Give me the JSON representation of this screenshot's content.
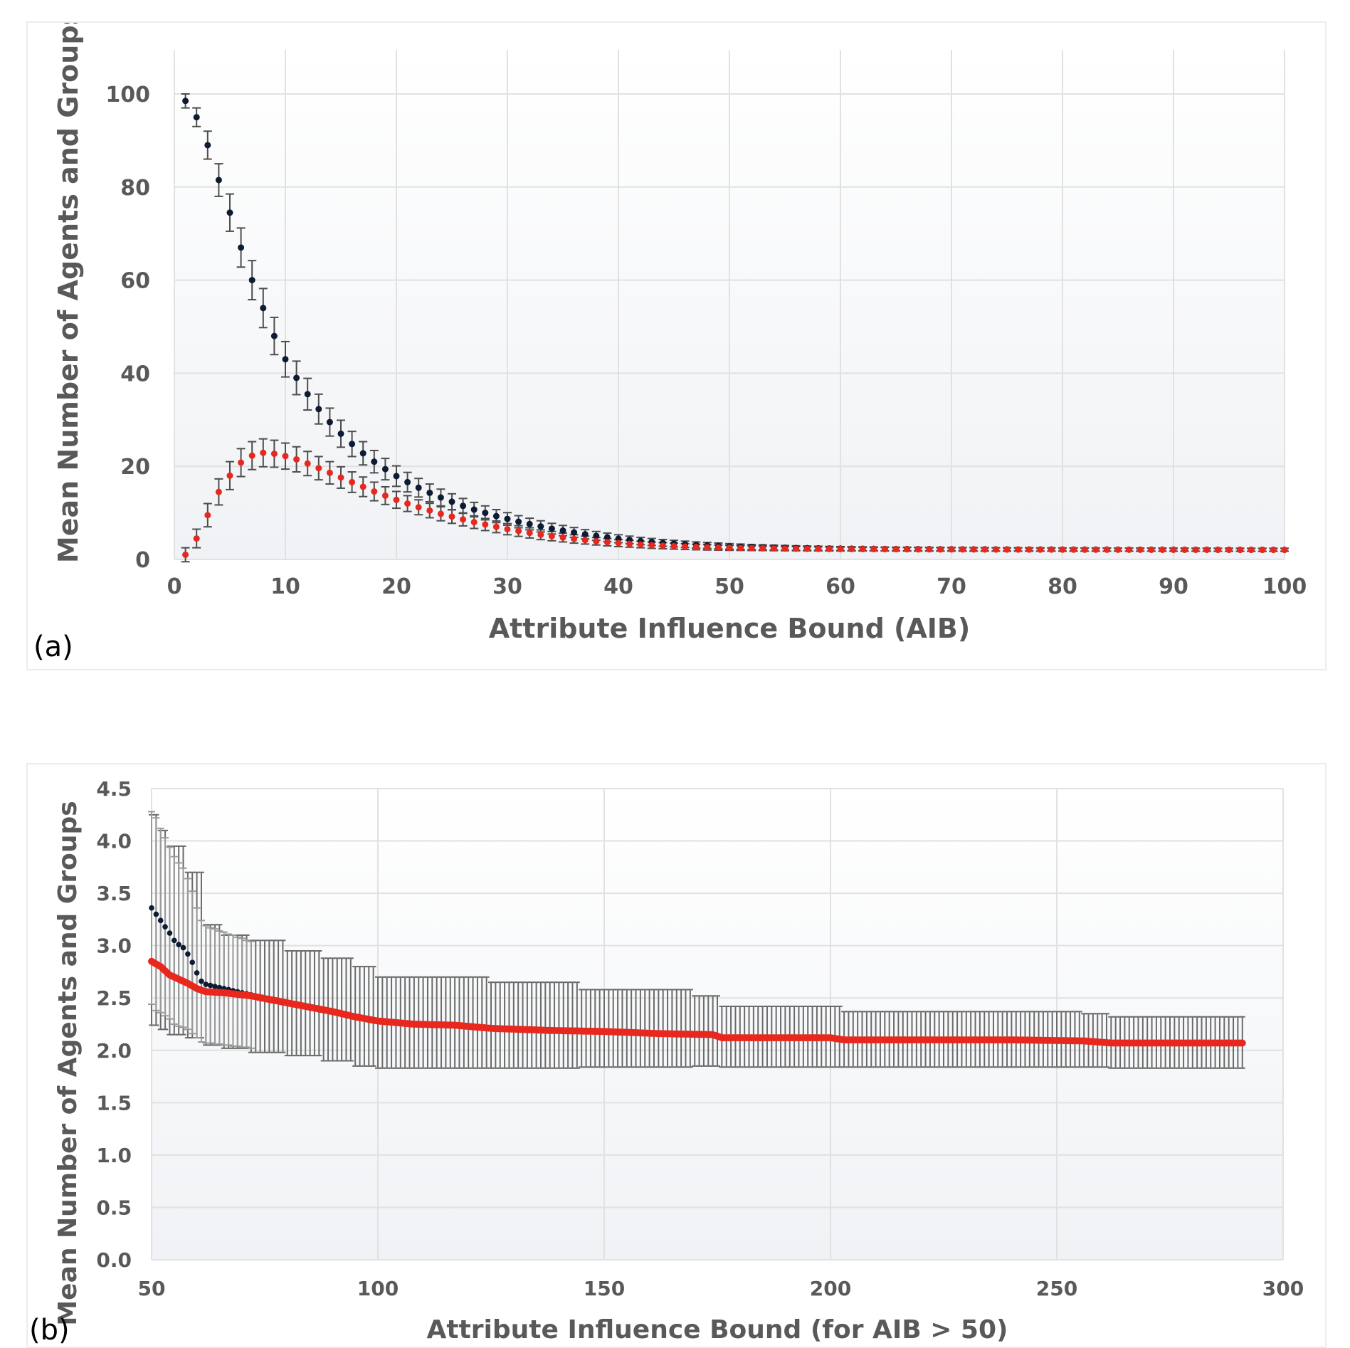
{
  "colors": {
    "agents": "#0d1b33",
    "groups": "#e8281e",
    "errorbar": "#4d4d4d",
    "grid": "#e1e1e1"
  },
  "chart_data": [
    {
      "id": "a",
      "panel_label": "(a)",
      "type": "scatter",
      "title": "",
      "xlabel": "Attribute Influence Bound (AIB)",
      "ylabel": "Mean Number of Agents and Groups",
      "xlim": [
        0,
        100
      ],
      "ylim": [
        0,
        110
      ],
      "xticks": [
        0,
        10,
        20,
        30,
        40,
        50,
        60,
        70,
        80,
        90,
        100
      ],
      "yticks": [
        0,
        20,
        40,
        60,
        80,
        100
      ],
      "grid": true,
      "legend": "none",
      "series": [
        {
          "name": "agents",
          "color": "#0d1b33",
          "x_start": 1,
          "x_step": 1,
          "values": [
            98.5,
            95,
            89,
            81.5,
            74.5,
            67,
            60,
            54,
            48,
            43,
            39,
            35.5,
            32.3,
            29.5,
            27,
            24.8,
            22.8,
            21,
            19.4,
            17.9,
            16.6,
            15.4,
            14.3,
            13.3,
            12.4,
            11.5,
            10.7,
            10,
            9.3,
            8.7,
            8.1,
            7.6,
            7.1,
            6.6,
            6.2,
            5.8,
            5.4,
            5.05,
            4.75,
            4.45,
            4.2,
            3.95,
            3.75,
            3.55,
            3.4,
            3.25,
            3.1,
            3,
            2.9,
            2.8,
            2.72,
            2.65,
            2.6,
            2.55,
            2.5,
            2.45,
            2.42,
            2.39,
            2.36,
            2.33,
            2.31,
            2.29,
            2.27,
            2.25,
            2.24,
            2.23,
            2.22,
            2.21,
            2.2,
            2.19,
            2.18,
            2.17,
            2.17,
            2.16,
            2.16,
            2.15,
            2.15,
            2.14,
            2.14,
            2.13,
            2.13,
            2.12,
            2.12,
            2.12,
            2.11,
            2.11,
            2.11,
            2.1,
            2.1,
            2.1,
            2.09,
            2.09,
            2.09,
            2.08,
            2.08,
            2.08,
            2.07,
            2.07,
            2.07,
            2.07
          ],
          "errors": [
            1.5,
            2,
            3,
            3.5,
            4,
            4.2,
            4.2,
            4.2,
            4,
            3.8,
            3.6,
            3.4,
            3.2,
            3,
            2.9,
            2.7,
            2.5,
            2.4,
            2.3,
            2.2,
            2.1,
            2,
            1.9,
            1.8,
            1.7,
            1.6,
            1.55,
            1.5,
            1.4,
            1.35,
            1.3,
            1.25,
            1.2,
            1.15,
            1.1,
            1.05,
            1,
            0.95,
            0.9,
            0.85,
            0.8,
            0.78,
            0.75,
            0.72,
            0.7,
            0.68,
            0.66,
            0.64,
            0.62,
            0.6,
            0.58,
            0.56,
            0.54,
            0.52,
            0.5,
            0.48,
            0.46,
            0.45,
            0.44,
            0.43,
            0.42,
            0.41,
            0.4,
            0.4,
            0.39,
            0.39,
            0.38,
            0.38,
            0.38,
            0.37,
            0.37,
            0.37,
            0.36,
            0.36,
            0.36,
            0.35,
            0.35,
            0.35,
            0.35,
            0.34,
            0.34,
            0.34,
            0.34,
            0.34,
            0.33,
            0.33,
            0.33,
            0.33,
            0.33,
            0.33,
            0.32,
            0.32,
            0.32,
            0.32,
            0.32,
            0.32,
            0.32,
            0.32,
            0.32,
            0.32
          ]
        },
        {
          "name": "groups",
          "color": "#e8281e",
          "x_start": 1,
          "x_step": 1,
          "values": [
            1,
            4.5,
            9.5,
            14.5,
            18,
            20.8,
            22.3,
            22.9,
            22.7,
            22.2,
            21.5,
            20.6,
            19.6,
            18.6,
            17.6,
            16.6,
            15.6,
            14.6,
            13.7,
            12.8,
            12,
            11.2,
            10.5,
            9.8,
            9.2,
            8.6,
            8,
            7.5,
            7,
            6.5,
            6.1,
            5.7,
            5.3,
            5,
            4.7,
            4.4,
            4.15,
            3.9,
            3.7,
            3.5,
            3.35,
            3.2,
            3.05,
            2.95,
            2.85,
            2.75,
            2.67,
            2.6,
            2.54,
            2.49,
            2.45,
            2.41,
            2.38,
            2.35,
            2.32,
            2.3,
            2.28,
            2.26,
            2.24,
            2.23,
            2.22,
            2.21,
            2.2,
            2.19,
            2.18,
            2.17,
            2.16,
            2.16,
            2.15,
            2.15,
            2.14,
            2.14,
            2.13,
            2.13,
            2.12,
            2.12,
            2.12,
            2.11,
            2.11,
            2.11,
            2.1,
            2.1,
            2.1,
            2.09,
            2.09,
            2.09,
            2.09,
            2.08,
            2.08,
            2.08,
            2.08,
            2.07,
            2.07,
            2.07,
            2.07,
            2.06,
            2.06,
            2.06,
            2.06,
            2.06
          ],
          "errors": [
            1.5,
            2,
            2.5,
            2.8,
            3,
            3,
            3,
            3,
            2.9,
            2.8,
            2.7,
            2.6,
            2.5,
            2.4,
            2.3,
            2.2,
            2.1,
            2,
            1.9,
            1.8,
            1.7,
            1.6,
            1.55,
            1.5,
            1.45,
            1.4,
            1.35,
            1.3,
            1.25,
            1.2,
            1.15,
            1.1,
            1.05,
            1,
            0.95,
            0.9,
            0.85,
            0.8,
            0.78,
            0.75,
            0.72,
            0.7,
            0.68,
            0.66,
            0.64,
            0.62,
            0.6,
            0.58,
            0.56,
            0.54,
            0.52,
            0.5,
            0.48,
            0.47,
            0.46,
            0.45,
            0.44,
            0.43,
            0.42,
            0.41,
            0.4,
            0.4,
            0.39,
            0.39,
            0.38,
            0.38,
            0.38,
            0.37,
            0.37,
            0.37,
            0.36,
            0.36,
            0.36,
            0.35,
            0.35,
            0.35,
            0.35,
            0.34,
            0.34,
            0.34,
            0.34,
            0.34,
            0.33,
            0.33,
            0.33,
            0.33,
            0.33,
            0.33,
            0.32,
            0.32,
            0.32,
            0.32,
            0.32,
            0.32,
            0.32,
            0.32,
            0.32,
            0.32,
            0.32,
            0.32
          ]
        }
      ]
    },
    {
      "id": "b",
      "panel_label": "(b)",
      "type": "scatter",
      "title": "",
      "xlabel": "Attribute Influence Bound (for AIB > 50)",
      "ylabel": "Mean Number of Agents and Groups",
      "xlim": [
        50,
        300
      ],
      "ylim": [
        0,
        4.5
      ],
      "xticks": [
        50,
        100,
        150,
        200,
        250,
        300
      ],
      "yticks": [
        0.0,
        0.5,
        1.0,
        1.5,
        2.0,
        2.5,
        3.0,
        3.5,
        4.0,
        4.5
      ],
      "ytick_labels": [
        "0.0",
        "0.5",
        "1.0",
        "1.5",
        "2.0",
        "2.5",
        "3.0",
        "3.5",
        "4.0",
        "4.5"
      ],
      "grid": true,
      "legend": "none",
      "series": [
        {
          "name": "agents",
          "color": "#0d1b33",
          "x": [
            50,
            51,
            52,
            53,
            54,
            55,
            56,
            57,
            58,
            59,
            60,
            61,
            62,
            63,
            64,
            65,
            66,
            67,
            68,
            69,
            70,
            71,
            72
          ],
          "values": [
            3.36,
            3.3,
            3.24,
            3.18,
            3.12,
            3.05,
            3.01,
            2.98,
            2.92,
            2.84,
            2.74,
            2.66,
            2.63,
            2.62,
            2.61,
            2.6,
            2.59,
            2.58,
            2.57,
            2.56,
            2.55,
            2.54,
            2.53
          ],
          "errors": [
            0.92,
            0.92,
            0.88,
            0.85,
            0.82,
            0.8,
            0.78,
            0.76,
            0.72,
            0.68,
            0.62,
            0.58,
            0.56,
            0.55,
            0.55,
            0.54,
            0.54,
            0.53,
            0.53,
            0.52,
            0.52,
            0.51,
            0.51
          ]
        },
        {
          "name": "groups",
          "color": "#e8281e",
          "segments": [
            [
              50,
              2.85
            ],
            [
              52,
              2.8
            ],
            [
              54,
              2.72
            ],
            [
              56,
              2.68
            ],
            [
              58,
              2.64
            ],
            [
              60,
              2.59
            ],
            [
              62,
              2.56
            ],
            [
              66,
              2.55
            ],
            [
              72,
              2.52
            ],
            [
              78,
              2.47
            ],
            [
              84,
              2.42
            ],
            [
              90,
              2.37
            ],
            [
              95,
              2.32
            ],
            [
              100,
              2.28
            ],
            [
              108,
              2.25
            ],
            [
              117,
              2.24
            ],
            [
              125,
              2.21
            ],
            [
              138,
              2.19
            ],
            [
              150,
              2.18
            ],
            [
              162,
              2.16
            ],
            [
              174,
              2.15
            ],
            [
              176,
              2.12
            ],
            [
              200,
              2.12
            ],
            [
              203,
              2.1
            ],
            [
              240,
              2.1
            ],
            [
              256,
              2.09
            ],
            [
              262,
              2.07
            ],
            [
              291,
              2.07
            ]
          ],
          "error_segments": [
            [
              50,
              4.25,
              2.24
            ],
            [
              52,
              4.1,
              2.2
            ],
            [
              54,
              3.95,
              2.15
            ],
            [
              58,
              3.7,
              2.12
            ],
            [
              62,
              3.2,
              2.05
            ],
            [
              66,
              3.1,
              2.02
            ],
            [
              72,
              3.05,
              1.98
            ],
            [
              80,
              2.95,
              1.95
            ],
            [
              88,
              2.88,
              1.9
            ],
            [
              95,
              2.8,
              1.85
            ],
            [
              100,
              2.7,
              1.83
            ],
            [
              125,
              2.65,
              1.83
            ],
            [
              145,
              2.58,
              1.84
            ],
            [
              170,
              2.52,
              1.85
            ],
            [
              176,
              2.42,
              1.84
            ],
            [
              200,
              2.42,
              1.84
            ],
            [
              203,
              2.37,
              1.84
            ],
            [
              256,
              2.35,
              1.84
            ],
            [
              262,
              2.32,
              1.83
            ],
            [
              291,
              2.32,
              1.83
            ]
          ],
          "x_start": 50,
          "x_end": 291
        }
      ]
    }
  ]
}
